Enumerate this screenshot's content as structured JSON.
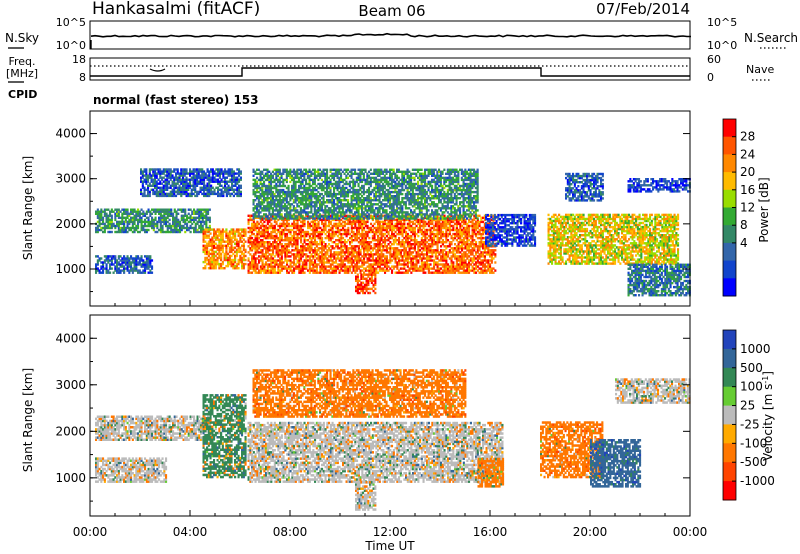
{
  "header": {
    "station": "Hankasalmi (fitACF)",
    "beam": "Beam 06",
    "date": "07/Feb/2014"
  },
  "noise_panel": {
    "left_label": "N.Sky",
    "right_label": "N.Search",
    "left_ticks": [
      "10^5",
      "10^0"
    ],
    "right_ticks": [
      "10^5",
      "10^0"
    ]
  },
  "freq_panel": {
    "left_label_1": "Freq.",
    "left_label_2": "[MHz]",
    "right_label": "Nave",
    "left_ticks": [
      "18",
      "8"
    ],
    "right_ticks": [
      "60",
      "0"
    ]
  },
  "cpid_panel": {
    "label": "CPID",
    "text": "normal (fast stereo) 153"
  },
  "chart_data": [
    {
      "type": "heatmap",
      "name": "Power",
      "ylabel": "Slant Range [km]",
      "xlabel": "Time UT",
      "x_range": [
        "00:00",
        "24:00"
      ],
      "x_ticks": [
        "00:00",
        "04:00",
        "08:00",
        "12:00",
        "16:00",
        "20:00",
        "00:00"
      ],
      "y_range": [
        180,
        4500
      ],
      "y_ticks": [
        "1000",
        "2000",
        "3000",
        "4000"
      ],
      "colorbar": {
        "label": "Power [dB]",
        "ticks": [
          "28",
          "24",
          "20",
          "16",
          "12",
          "8",
          "4"
        ],
        "colors": [
          "#ff0000",
          "#ff5500",
          "#ff8800",
          "#ffbb00",
          "#99dd00",
          "#33aa33",
          "#338866",
          "#3366aa",
          "#1144cc",
          "#0000ff"
        ]
      },
      "regions": [
        {
          "t": [
            0.2,
            4.8
          ],
          "r": [
            1800,
            2300
          ],
          "level": 12
        },
        {
          "t": [
            0.2,
            2.5
          ],
          "r": [
            900,
            1300
          ],
          "level": 8
        },
        {
          "t": [
            2.0,
            6.0
          ],
          "r": [
            2600,
            3200
          ],
          "level": 8
        },
        {
          "t": [
            4.5,
            6.2
          ],
          "r": [
            1000,
            1900
          ],
          "level": 24
        },
        {
          "t": [
            6.3,
            16.2
          ],
          "r": [
            900,
            2200
          ],
          "level": 26
        },
        {
          "t": [
            6.5,
            15.5
          ],
          "r": [
            2100,
            3200
          ],
          "level": 12
        },
        {
          "t": [
            10.6,
            11.4
          ],
          "r": [
            450,
            900
          ],
          "level": 28
        },
        {
          "t": [
            15.8,
            17.8
          ],
          "r": [
            1500,
            2200
          ],
          "level": 6
        },
        {
          "t": [
            18.3,
            23.5
          ],
          "r": [
            1100,
            2200
          ],
          "level": 20
        },
        {
          "t": [
            19.0,
            20.5
          ],
          "r": [
            2500,
            3100
          ],
          "level": 8
        },
        {
          "t": [
            21.5,
            24.0
          ],
          "r": [
            2700,
            3000
          ],
          "level": 6
        },
        {
          "t": [
            21.5,
            24.0
          ],
          "r": [
            400,
            1100
          ],
          "level": 10
        }
      ]
    },
    {
      "type": "heatmap",
      "name": "Velocity",
      "ylabel": "Slant Range [km]",
      "xlabel": "Time UT",
      "x_range": [
        "00:00",
        "24:00"
      ],
      "x_ticks": [
        "00:00",
        "04:00",
        "08:00",
        "12:00",
        "16:00",
        "20:00",
        "00:00"
      ],
      "y_range": [
        180,
        4500
      ],
      "y_ticks": [
        "1000",
        "2000",
        "3000",
        "4000"
      ],
      "colorbar": {
        "label": "Velocity [m s^-1]",
        "ticks": [
          "1000",
          "500",
          "100",
          "25",
          "-25",
          "-100",
          "-500",
          "-1000"
        ],
        "colors": [
          "#2244bb",
          "#336699",
          "#338855",
          "#66cc33",
          "#bbbbbb",
          "#ffaa00",
          "#ff7700",
          "#ff4400",
          "#ff0000"
        ]
      },
      "regions": [
        {
          "t": [
            0.2,
            4.8
          ],
          "r": [
            1800,
            2300
          ],
          "vel": 0
        },
        {
          "t": [
            0.2,
            3.0
          ],
          "r": [
            900,
            1400
          ],
          "vel": 0
        },
        {
          "t": [
            4.5,
            6.2
          ],
          "r": [
            1000,
            2800
          ],
          "vel": 100
        },
        {
          "t": [
            6.3,
            16.5
          ],
          "r": [
            900,
            2200
          ],
          "vel": 0
        },
        {
          "t": [
            6.5,
            15.0
          ],
          "r": [
            2300,
            3300
          ],
          "vel": -300
        },
        {
          "t": [
            10.6,
            11.4
          ],
          "r": [
            300,
            900
          ],
          "vel": 0
        },
        {
          "t": [
            15.5,
            16.5
          ],
          "r": [
            800,
            1400
          ],
          "vel": -150
        },
        {
          "t": [
            18.0,
            20.5
          ],
          "r": [
            1000,
            2200
          ],
          "vel": -300
        },
        {
          "t": [
            20.0,
            22.0
          ],
          "r": [
            800,
            1800
          ],
          "vel": 500
        },
        {
          "t": [
            21.0,
            24.0
          ],
          "r": [
            2600,
            3100
          ],
          "vel": 0
        }
      ]
    }
  ]
}
